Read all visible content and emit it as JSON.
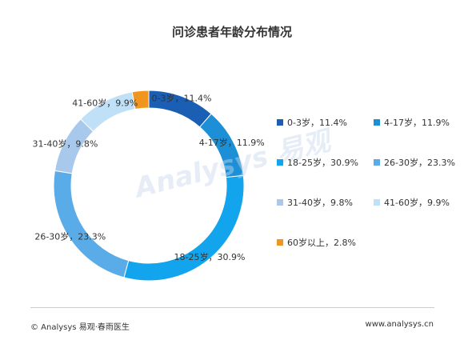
{
  "chart_data": {
    "type": "pie",
    "title": "问诊患者年龄分布情况",
    "categories": [
      "0-3岁",
      "4-17岁",
      "18-25岁",
      "26-30岁",
      "31-40岁",
      "41-60岁",
      "60岁以上"
    ],
    "values": [
      11.4,
      11.9,
      30.9,
      23.3,
      9.8,
      9.9,
      2.8
    ],
    "unit": "%",
    "colors": [
      "#1a5fb4",
      "#1c8fd6",
      "#12a5ee",
      "#5aace8",
      "#a9c9ec",
      "#bfe0f6",
      "#f0961e"
    ],
    "slice_labels": [
      "0-3岁，11.4%",
      "4-17岁，11.9%",
      "18-25岁，30.9%",
      "26-30岁，23.3%",
      "31-40岁，9.8%",
      "41-60岁，9.9%",
      ""
    ],
    "legend_labels": [
      "0-3岁，11.4%",
      "4-17岁，11.9%",
      "18-25岁，30.9%",
      "26-30岁，23.3%",
      "31-40岁，9.8%",
      "41-60岁，9.9%",
      "60岁以上，2.8%"
    ],
    "donut": true,
    "legend_position": "right"
  },
  "watermark": "Analysys 易观",
  "footer": {
    "left": "© Analysys 易观·春雨医生",
    "right": "www.analysys.cn"
  }
}
